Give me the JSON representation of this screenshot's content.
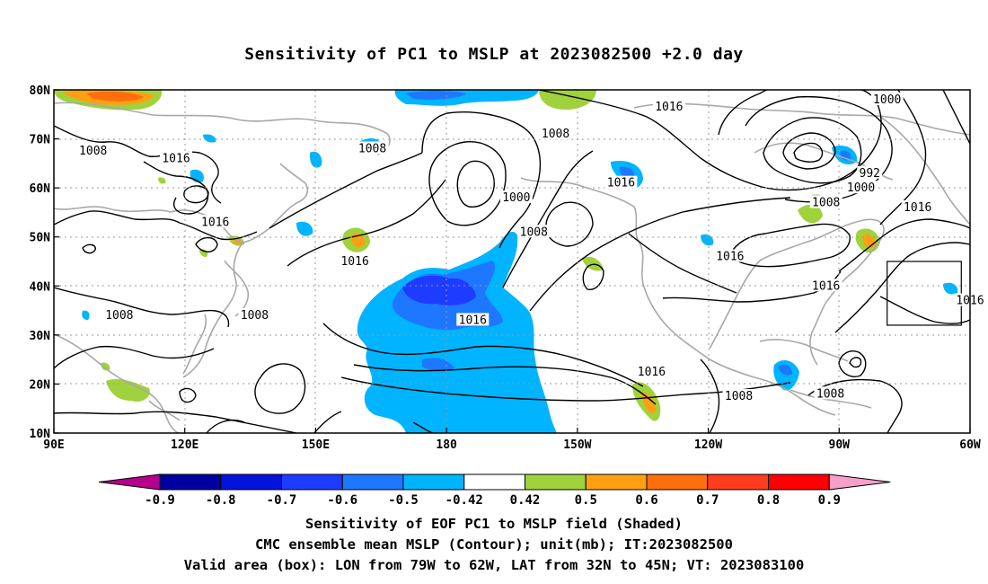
{
  "title": "Sensitivity of PC1 to MSLP at 2023082500 +2.0 day",
  "captions": {
    "line1": "Sensitivity of EOF PC1 to MSLP field (Shaded)",
    "line2": "CMC ensemble mean MSLP (Contour); unit(mb); IT:2023082500",
    "line3": "Valid area (box): LON from 79W to 62W, LAT from 32N to 45N; VT: 2023083100"
  },
  "map": {
    "lon_range": [
      90,
      300
    ],
    "lat_range": [
      10,
      80
    ],
    "lon_ticks": [
      {
        "lon": 90,
        "label": "90E"
      },
      {
        "lon": 120,
        "label": "120E"
      },
      {
        "lon": 150,
        "label": "150E"
      },
      {
        "lon": 180,
        "label": "180"
      },
      {
        "lon": 210,
        "label": "150W"
      },
      {
        "lon": 240,
        "label": "120W"
      },
      {
        "lon": 270,
        "label": "90W"
      },
      {
        "lon": 300,
        "label": "60W"
      }
    ],
    "lat_ticks": [
      {
        "lat": 80,
        "label": "80N"
      },
      {
        "lat": 70,
        "label": "70N"
      },
      {
        "lat": 60,
        "label": "60N"
      },
      {
        "lat": 50,
        "label": "50N"
      },
      {
        "lat": 40,
        "label": "40N"
      },
      {
        "lat": 30,
        "label": "30N"
      },
      {
        "lat": 20,
        "label": "20N"
      },
      {
        "lat": 10,
        "label": "10N"
      }
    ],
    "grid": true,
    "valid_box": {
      "lon_w": 281,
      "lon_e": 298,
      "lat_s": 32,
      "lat_n": 45
    },
    "contour_labels": [
      {
        "text": "1016",
        "lon": 231,
        "lat": 76.5
      },
      {
        "text": "1000",
        "lon": 281,
        "lat": 78
      },
      {
        "text": "1008",
        "lon": 99,
        "lat": 67.5
      },
      {
        "text": "1016",
        "lon": 118,
        "lat": 66
      },
      {
        "text": "1008",
        "lon": 163,
        "lat": 68
      },
      {
        "text": "1008",
        "lon": 205,
        "lat": 71
      },
      {
        "text": "992",
        "lon": 277,
        "lat": 63
      },
      {
        "text": "1000",
        "lon": 275,
        "lat": 60
      },
      {
        "text": "1016",
        "lon": 220,
        "lat": 61
      },
      {
        "text": "1000",
        "lon": 196,
        "lat": 58
      },
      {
        "text": "1008",
        "lon": 267,
        "lat": 57
      },
      {
        "text": "1016",
        "lon": 288,
        "lat": 56
      },
      {
        "text": "1016",
        "lon": 127,
        "lat": 53
      },
      {
        "text": "1008",
        "lon": 200,
        "lat": 51
      },
      {
        "text": "1016",
        "lon": 245,
        "lat": 46
      },
      {
        "text": "1016",
        "lon": 159,
        "lat": 45
      },
      {
        "text": "1016",
        "lon": 267,
        "lat": 40
      },
      {
        "text": "1016",
        "lon": 300,
        "lat": 37
      },
      {
        "text": "1008",
        "lon": 105,
        "lat": 34
      },
      {
        "text": "1008",
        "lon": 136,
        "lat": 34
      },
      {
        "text": "1016",
        "lon": 186,
        "lat": 33
      },
      {
        "text": "1016",
        "lon": 227,
        "lat": 22.5
      },
      {
        "text": "1008",
        "lon": 247,
        "lat": 17.5
      },
      {
        "text": "1008",
        "lon": 268,
        "lat": 18
      }
    ]
  },
  "colorbar": {
    "labels": [
      "-0.9",
      "-0.8",
      "-0.7",
      "-0.6",
      "-0.5",
      "-0.42",
      "0.42",
      "0.5",
      "0.6",
      "0.7",
      "0.8",
      "0.9"
    ],
    "colors": {
      "lt_min": "#b4008c",
      "n09": "#0000a0",
      "n08": "#0014dc",
      "n07": "#1e3cff",
      "n06": "#1e78ff",
      "n05": "#00b4ff",
      "zero": "#ffffff",
      "p05": "#a0d23c",
      "p06": "#ffa014",
      "p07": "#ff6e0a",
      "p08": "#ff3c1e",
      "p09": "#ff0000",
      "gt_max": "#f5a0c8"
    }
  }
}
